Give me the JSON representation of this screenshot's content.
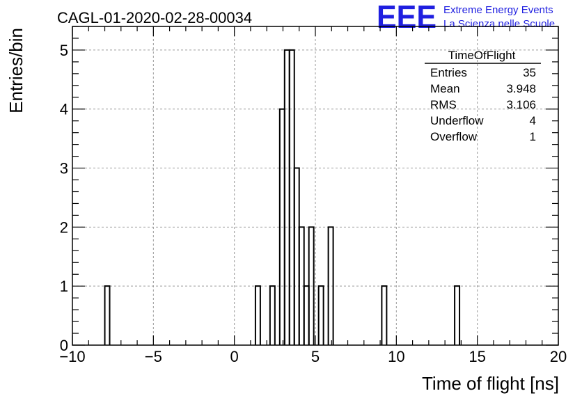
{
  "header": {
    "run_title": "CAGL-01-2020-02-28-00034",
    "logo_text": "EEE",
    "org_line1": "Extreme Energy Events",
    "org_line2": "La Scienza nelle Scuole",
    "brand_color": "#1f1fe0"
  },
  "stats": {
    "name": "TimeOfFlight",
    "rows": [
      {
        "label": "Entries",
        "value": "35"
      },
      {
        "label": "Mean",
        "value": "3.948"
      },
      {
        "label": "RMS",
        "value": "3.106"
      },
      {
        "label": "Underflow",
        "value": "4"
      },
      {
        "label": "Overflow",
        "value": "1"
      }
    ]
  },
  "chart_data": {
    "type": "bar",
    "title": "CAGL-01-2020-02-28-00034",
    "xlabel": "Time of flight [ns]",
    "ylabel": "Entries/bin",
    "xlim": [
      -10,
      20
    ],
    "ylim": [
      0,
      5.4
    ],
    "xticks": [
      -10,
      -5,
      0,
      5,
      10,
      15,
      20
    ],
    "yticks": [
      0,
      1,
      2,
      3,
      4,
      5
    ],
    "grid": true,
    "bin_width": 0.3,
    "bins": [
      {
        "x": -8.0,
        "count": 1
      },
      {
        "x": 1.3,
        "count": 1
      },
      {
        "x": 2.2,
        "count": 1
      },
      {
        "x": 2.8,
        "count": 4
      },
      {
        "x": 3.1,
        "count": 5
      },
      {
        "x": 3.4,
        "count": 5
      },
      {
        "x": 3.7,
        "count": 3
      },
      {
        "x": 4.0,
        "count": 2
      },
      {
        "x": 4.3,
        "count": 1
      },
      {
        "x": 4.6,
        "count": 2
      },
      {
        "x": 5.2,
        "count": 1
      },
      {
        "x": 5.8,
        "count": 2
      },
      {
        "x": 9.1,
        "count": 1
      },
      {
        "x": 13.6,
        "count": 1
      }
    ]
  }
}
